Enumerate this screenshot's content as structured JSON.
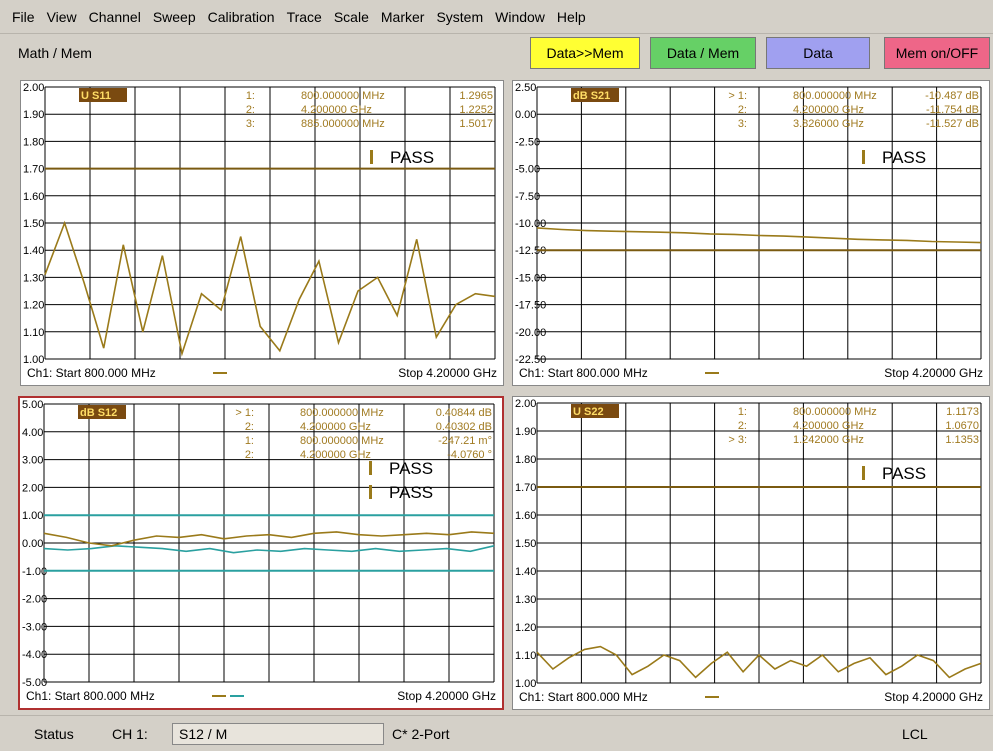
{
  "menu": [
    "File",
    "View",
    "Channel",
    "Sweep",
    "Calibration",
    "Trace",
    "Scale",
    "Marker",
    "System",
    "Window",
    "Help"
  ],
  "softkey_label": "Math / Mem",
  "softkeys": [
    {
      "label": "Data>>Mem",
      "color": "#ffff33"
    },
    {
      "label": "Data / Mem",
      "color": "#66d066"
    },
    {
      "label": "Data",
      "color": "#a0a0f0"
    },
    {
      "label": "Mem on/OFF",
      "color": "#ee6688"
    }
  ],
  "colors": {
    "trace": "#9a7a1a",
    "trace2": "#2aa0a0",
    "limit": "#7a5a10",
    "tag_bg": "#7a4a10",
    "tag_fg": "#ffdd66",
    "marker_text": "#a07a20"
  },
  "panels": [
    {
      "tag": "U S11",
      "active": false,
      "yticks": [
        "2.00",
        "1.90",
        "1.80",
        "1.70",
        "1.60",
        "1.50",
        "1.40",
        "1.30",
        "1.20",
        "1.10",
        "1.00"
      ],
      "markers": [
        {
          "num": "1:",
          "freq": "800.000000 MHz",
          "val": "1.2965"
        },
        {
          "num": "2:",
          "freq": "4.200000 GHz",
          "val": "1.2252"
        },
        {
          "num": "3:",
          "freq": "885.000000 MHz",
          "val": "1.5017"
        }
      ],
      "pass": [
        "PASS"
      ],
      "start": "Ch1: Start 800.000 MHz",
      "stop": "Stop 4.20000 GHz",
      "ymin": 1.0,
      "ymax": 2.0,
      "limit": 1.7,
      "trace": [
        1.31,
        1.5,
        1.28,
        1.04,
        1.42,
        1.1,
        1.38,
        1.02,
        1.24,
        1.18,
        1.45,
        1.12,
        1.03,
        1.22,
        1.36,
        1.06,
        1.25,
        1.3,
        1.16,
        1.44,
        1.08,
        1.2,
        1.24,
        1.23
      ]
    },
    {
      "tag": "dB S21",
      "active": false,
      "yticks": [
        "2.50",
        "0.00",
        "-2.50",
        "-5.00",
        "-7.50",
        "-10.00",
        "-12.50",
        "-15.00",
        "-17.50",
        "-20.00",
        "-22.50"
      ],
      "markers": [
        {
          "num": "> 1:",
          "freq": "800.000000 MHz",
          "val": "-10.487 dB"
        },
        {
          "num": "2:",
          "freq": "4.200000 GHz",
          "val": "-11.754 dB"
        },
        {
          "num": "3:",
          "freq": "3.826000 GHz",
          "val": "-11.527 dB"
        }
      ],
      "pass": [
        "PASS"
      ],
      "start": "Ch1: Start 800.000 MHz",
      "stop": "Stop 4.20000 GHz",
      "ymin": -22.5,
      "ymax": 2.5,
      "limit": -12.5,
      "trace": [
        -10.45,
        -10.6,
        -10.7,
        -10.75,
        -10.8,
        -10.85,
        -10.9,
        -11.0,
        -11.05,
        -11.15,
        -11.2,
        -11.3,
        -11.4,
        -11.5,
        -11.55,
        -11.6,
        -11.7,
        -11.75,
        -11.8
      ]
    },
    {
      "tag": "dB S12",
      "active": true,
      "yticks": [
        "5.00",
        "4.00",
        "3.00",
        "2.00",
        "1.00",
        "0.00",
        "-1.00",
        "-2.00",
        "-3.00",
        "-4.00",
        "-5.00"
      ],
      "markers": [
        {
          "num": "> 1:",
          "freq": "800.000000 MHz",
          "val": "0.40844 dB"
        },
        {
          "num": "2:",
          "freq": "4.200000 GHz",
          "val": "0.40302 dB"
        },
        {
          "num": "1:",
          "freq": "800.000000 MHz",
          "val": "-247.21 m°"
        },
        {
          "num": "2:",
          "freq": "4.200000 GHz",
          "val": "-4.0760 °"
        }
      ],
      "pass": [
        "PASS",
        "PASS"
      ],
      "start": "Ch1: Start 800.000 MHz",
      "stop": "Stop 4.20000 GHz",
      "ymin": -5.0,
      "ymax": 5.0,
      "limit_upper": 1.0,
      "limit_lower": -1.0,
      "trace": [
        0.35,
        0.2,
        0.0,
        -0.1,
        0.1,
        0.25,
        0.2,
        0.3,
        0.15,
        0.25,
        0.3,
        0.2,
        0.35,
        0.4,
        0.3,
        0.25,
        0.3,
        0.35,
        0.3,
        0.4,
        0.35
      ],
      "trace2": [
        -0.2,
        -0.25,
        -0.2,
        -0.1,
        -0.15,
        -0.2,
        -0.3,
        -0.2,
        -0.35,
        -0.25,
        -0.3,
        -0.2,
        -0.25,
        -0.3,
        -0.2,
        -0.3,
        -0.25,
        -0.2,
        -0.3,
        -0.1
      ]
    },
    {
      "tag": "U S22",
      "active": false,
      "yticks": [
        "2.00",
        "1.90",
        "1.80",
        "1.70",
        "1.60",
        "1.50",
        "1.40",
        "1.30",
        "1.20",
        "1.10",
        "1.00"
      ],
      "markers": [
        {
          "num": "1:",
          "freq": "800.000000 MHz",
          "val": "1.1173"
        },
        {
          "num": "2:",
          "freq": "4.200000 GHz",
          "val": "1.0670"
        },
        {
          "num": "> 3:",
          "freq": "1.242000 GHz",
          "val": "1.1353"
        }
      ],
      "pass": [
        "PASS"
      ],
      "start": "Ch1: Start 800.000 MHz",
      "stop": "Stop 4.20000 GHz",
      "ymin": 1.0,
      "ymax": 2.0,
      "limit": 1.7,
      "trace": [
        1.11,
        1.05,
        1.09,
        1.12,
        1.13,
        1.1,
        1.03,
        1.06,
        1.1,
        1.08,
        1.02,
        1.07,
        1.11,
        1.04,
        1.1,
        1.05,
        1.08,
        1.06,
        1.1,
        1.04,
        1.07,
        1.09,
        1.03,
        1.06,
        1.1,
        1.08,
        1.02,
        1.05,
        1.07
      ]
    }
  ],
  "status": {
    "label": "Status",
    "channel": "CH 1:",
    "param": "S12 / M",
    "cal": "C* 2-Port",
    "lcl": "LCL"
  }
}
